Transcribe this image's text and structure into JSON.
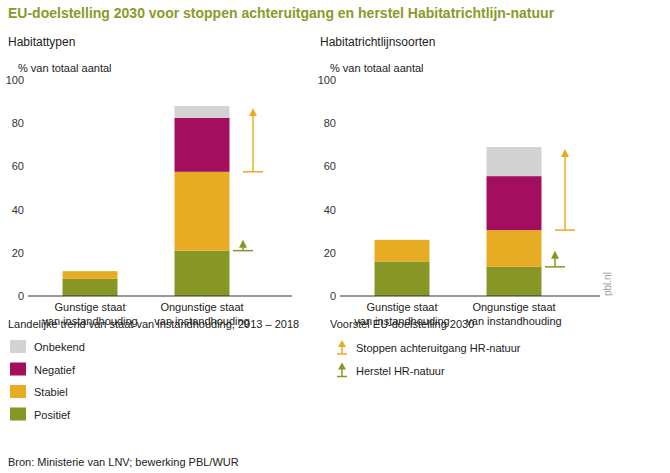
{
  "title": "EU-doelstelling 2030 voor stoppen achteruitgang en herstel Habitatrichtlijn-natuur",
  "legend_title": "Landelijke trend van staat van instandhouding, 2013 – 2018",
  "arrow_legend_title": "Voorstel EU-doelstelling 2030",
  "source": "Bron: Ministerie van LNV; bewerking PBL/WUR",
  "watermark": "pbl.nl",
  "chart_data": [
    {
      "type": "bar",
      "stacked": true,
      "grid": false,
      "title": "Habitattypen",
      "y_label": "% van totaal aantal",
      "categories": [
        "Gunstige staat van instandhouding",
        "Ongunstige staat van instandhouding"
      ],
      "ylim": [
        0,
        100
      ],
      "yticks": [
        0,
        20,
        40,
        60,
        80,
        100
      ],
      "series": [
        {
          "name": "Positief",
          "color": "#879624",
          "values": [
            8,
            21
          ]
        },
        {
          "name": "Stabiel",
          "color": "#e8ac24",
          "values": [
            3.5,
            36.5
          ]
        },
        {
          "name": "Negatief",
          "color": "#a30e5e",
          "values": [
            0,
            25
          ]
        },
        {
          "name": "Onbekend",
          "color": "#d3d3d3",
          "values": [
            0,
            5.5
          ]
        }
      ],
      "arrows": [
        {
          "name": "Stoppen achteruitgang HR-natuur",
          "color": "#e8ac24",
          "category": "Ongunstige staat van instandhouding",
          "from": 57.5,
          "to": 87
        },
        {
          "name": "Herstel HR-natuur",
          "color": "#879624",
          "category": "Ongunstige staat van instandhouding",
          "from": 21,
          "to": 26
        }
      ]
    },
    {
      "type": "bar",
      "stacked": true,
      "grid": false,
      "title": "Habitatrichtlijnsoorten",
      "y_label": "% van totaal aantal",
      "categories": [
        "Gunstige staat van instandhouding",
        "Ongunstige staat van instandhouding"
      ],
      "ylim": [
        0,
        100
      ],
      "yticks": [
        0,
        20,
        40,
        60,
        80,
        100
      ],
      "series": [
        {
          "name": "Positief",
          "color": "#879624",
          "values": [
            16,
            13.5
          ]
        },
        {
          "name": "Stabiel",
          "color": "#e8ac24",
          "values": [
            10,
            17
          ]
        },
        {
          "name": "Negatief",
          "color": "#a30e5e",
          "values": [
            0,
            25
          ]
        },
        {
          "name": "Onbekend",
          "color": "#d3d3d3",
          "values": [
            0,
            13.5
          ]
        }
      ],
      "arrows": [
        {
          "name": "Stoppen achteruitgang HR-natuur",
          "color": "#e8ac24",
          "category": "Ongunstige staat van instandhouding",
          "from": 30.5,
          "to": 68
        },
        {
          "name": "Herstel HR-natuur",
          "color": "#879624",
          "category": "Ongunstige staat van instandhouding",
          "from": 13.5,
          "to": 21
        }
      ]
    }
  ]
}
